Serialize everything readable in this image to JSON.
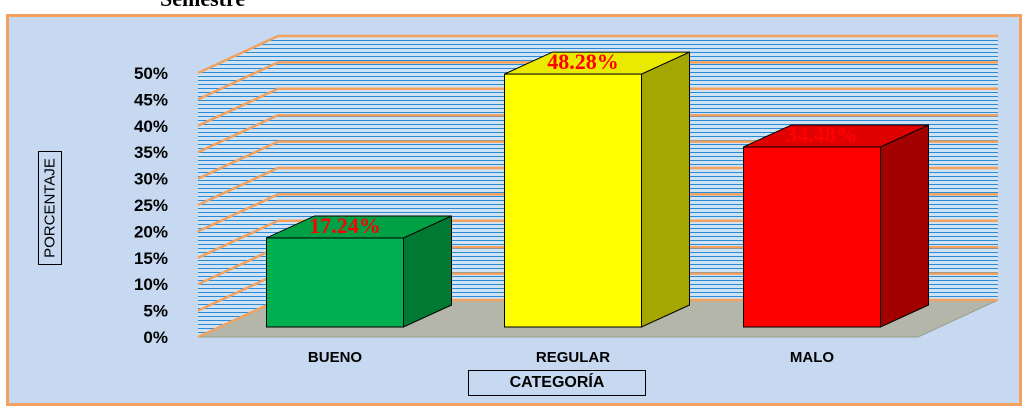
{
  "page": {
    "title_fragment": "Semestre"
  },
  "chart_data": {
    "type": "bar",
    "categories": [
      "BUENO",
      "REGULAR",
      "MALO"
    ],
    "values": [
      17.24,
      48.28,
      34.48
    ],
    "data_labels": [
      "17.24%",
      "48.28%",
      "34.48%"
    ],
    "xlabel": "CATEGORÍA",
    "ylabel": "PORCENTAJE",
    "ylim": [
      0,
      50
    ],
    "yticks": [
      "0%",
      "5%",
      "10%",
      "15%",
      "20%",
      "25%",
      "30%",
      "35%",
      "40%",
      "45%",
      "50%"
    ],
    "grid": true,
    "three_d": true,
    "colors": {
      "bars": [
        "#00b050",
        "#ffff00",
        "#ff0000"
      ],
      "bar_sides": [
        "#007a33",
        "#a6a600",
        "#a30000"
      ],
      "bar_tops": [
        "#00a045",
        "#eaea00",
        "#e10000"
      ],
      "data_label": "#ff0000",
      "background": "#c6d9f1",
      "wall_lines": "#2b8cd6",
      "gridlines": "#f3a15e",
      "floor": "#b3b6a8"
    }
  }
}
